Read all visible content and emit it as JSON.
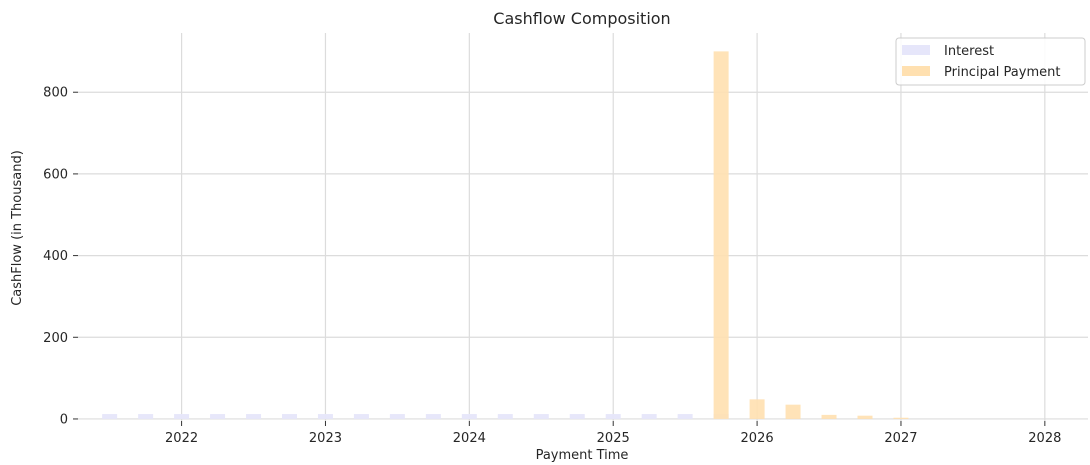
{
  "chart_data": {
    "type": "bar",
    "title": "Cashflow Composition",
    "xlabel": "Payment Time",
    "ylabel": "CashFlow (in Thousand)",
    "xlim": [
      2021.28,
      2028.3
    ],
    "ylim": [
      -5,
      945
    ],
    "x_ticks": [
      2022,
      2023,
      2024,
      2025,
      2026,
      2027,
      2028
    ],
    "y_ticks": [
      0,
      200,
      400,
      600,
      800
    ],
    "grid": true,
    "legend_position": "top-right",
    "series": [
      {
        "name": "Interest",
        "color": "#e6e6fa",
        "x": [
          2021.5,
          2021.75,
          2022.0,
          2022.25,
          2022.5,
          2022.75,
          2023.0,
          2023.25,
          2023.5,
          2023.75,
          2024.0,
          2024.25,
          2024.5,
          2024.75,
          2025.0,
          2025.25,
          2025.5,
          2025.75
        ],
        "values": [
          12,
          12,
          12,
          12,
          12,
          12,
          12,
          12,
          12,
          12,
          12,
          12,
          12,
          12,
          12,
          12,
          12,
          12
        ]
      },
      {
        "name": "Principal Payment",
        "color": "#ffe0b0",
        "x": [
          2025.75,
          2026.0,
          2026.25,
          2026.5,
          2026.75,
          2027.0
        ],
        "values": [
          900,
          48,
          35,
          10,
          8,
          3
        ]
      }
    ]
  }
}
